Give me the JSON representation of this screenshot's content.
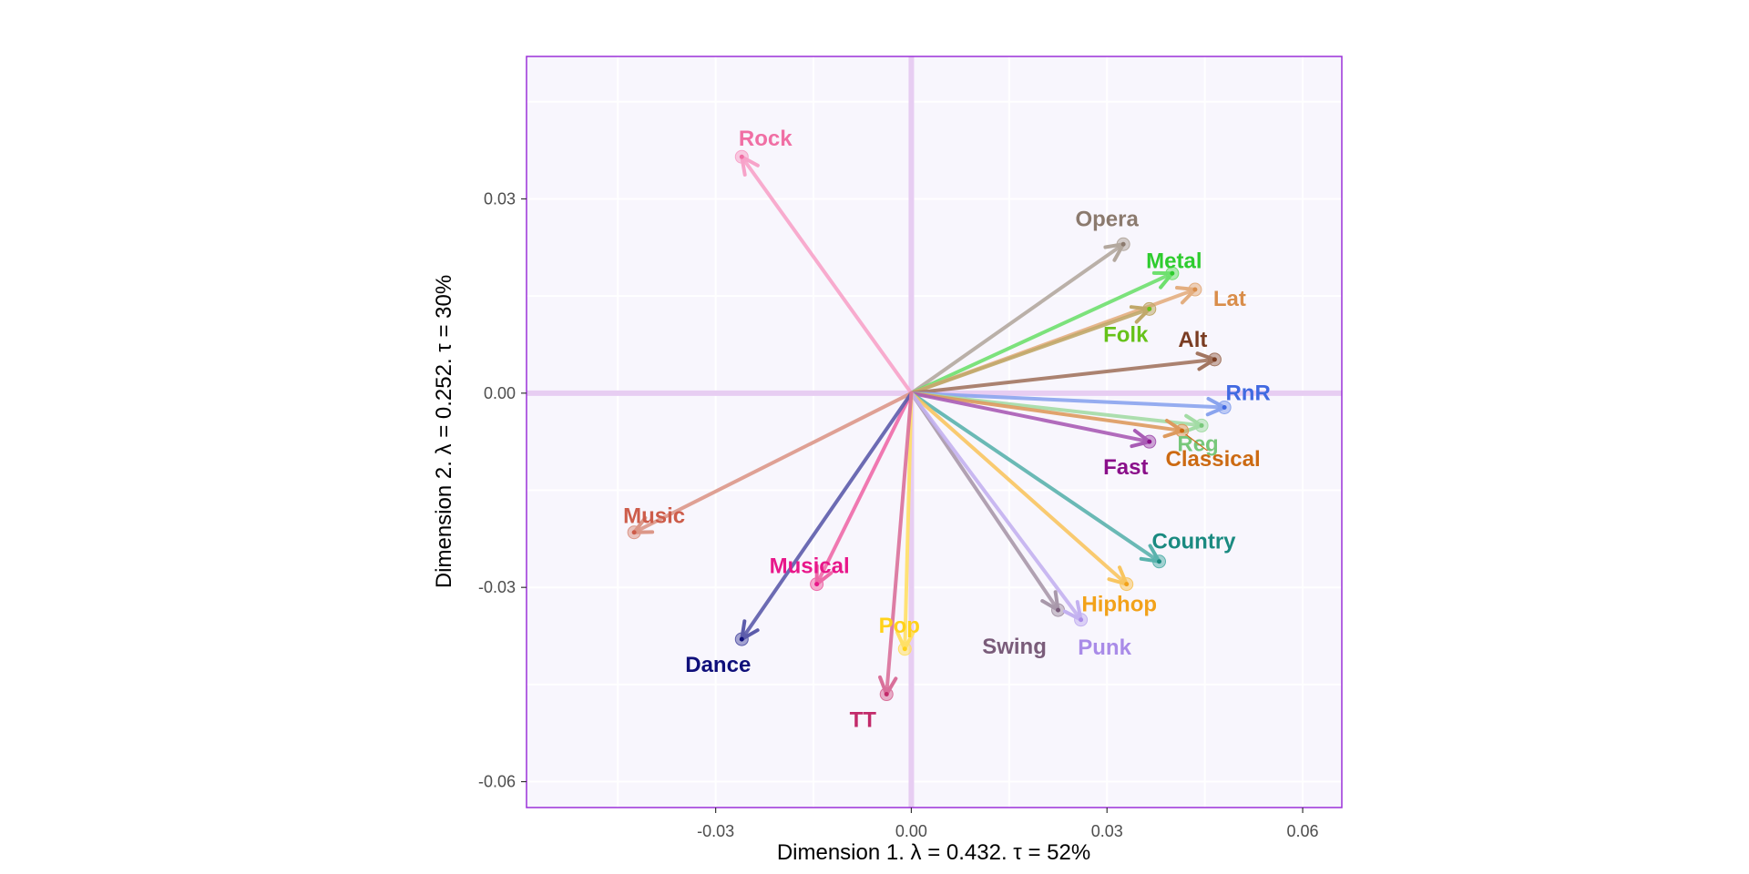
{
  "chart_data": {
    "type": "scatter",
    "subtype": "biplot-arrows",
    "title": "",
    "xlabel": "Dimension 1.   λ = 0.432.  τ = 52%",
    "ylabel": "Dimension 2.   λ = 0.252.  τ = 30%",
    "xlim": [
      -0.059,
      0.066
    ],
    "ylim": [
      -0.064,
      0.052
    ],
    "x_ticks": [
      -0.03,
      0.0,
      0.03,
      0.06
    ],
    "x_tick_labels": [
      "-0.03",
      "0.00",
      "0.03",
      "0.06"
    ],
    "y_ticks": [
      -0.06,
      -0.03,
      0.0,
      0.03
    ],
    "y_tick_labels": [
      "-0.06",
      "-0.03",
      "0.00",
      "0.03"
    ],
    "grid": true,
    "legend": "none",
    "panel_background": "#f8f6fd",
    "panel_border_color": "#9b30d9",
    "zero_line_color": "#e7cdf2",
    "points": [
      {
        "label": "Rock",
        "x": -0.026,
        "y": 0.0365,
        "color": "#f06fa4",
        "arrow_color": "#f7a3c9"
      },
      {
        "label": "Opera",
        "x": 0.0325,
        "y": 0.023,
        "color": "#8b7a6e",
        "arrow_color": "#b3a89e"
      },
      {
        "label": "Metal",
        "x": 0.04,
        "y": 0.0185,
        "color": "#2ecc2e",
        "arrow_color": "#6ee06e"
      },
      {
        "label": "Lat",
        "x": 0.0435,
        "y": 0.016,
        "color": "#d98d4a",
        "arrow_color": "#e3ae80"
      },
      {
        "label": "Folk",
        "x": 0.0365,
        "y": 0.013,
        "color": "#66c21a",
        "arrow_color": "#c0a86a"
      },
      {
        "label": "Alt",
        "x": 0.0465,
        "y": 0.0052,
        "color": "#7a3c22",
        "arrow_color": "#a27560"
      },
      {
        "label": "RnR",
        "x": 0.048,
        "y": -0.0022,
        "color": "#4169e1",
        "arrow_color": "#8aa4ee"
      },
      {
        "label": "Reg",
        "x": 0.0445,
        "y": -0.005,
        "color": "#77c77a",
        "arrow_color": "#a3dca5"
      },
      {
        "label": "Classical",
        "x": 0.0415,
        "y": -0.0058,
        "color": "#cc6a12",
        "arrow_color": "#dd9a5e"
      },
      {
        "label": "Fast",
        "x": 0.0365,
        "y": -0.0075,
        "color": "#8a0f8a",
        "arrow_color": "#a85cb5"
      },
      {
        "label": "Country",
        "x": 0.038,
        "y": -0.026,
        "color": "#1a8a80",
        "arrow_color": "#5ab3ad"
      },
      {
        "label": "Hiphop",
        "x": 0.033,
        "y": -0.0295,
        "color": "#f2a21a",
        "arrow_color": "#f8c560"
      },
      {
        "label": "Swing",
        "x": 0.0225,
        "y": -0.0335,
        "color": "#7a5c7a",
        "arrow_color": "#a898aa"
      },
      {
        "label": "Punk",
        "x": 0.026,
        "y": -0.035,
        "color": "#a98be8",
        "arrow_color": "#c3b1f0"
      },
      {
        "label": "Music",
        "x": -0.0425,
        "y": -0.0215,
        "color": "#cd5c4a",
        "arrow_color": "#dc9788"
      },
      {
        "label": "Musical",
        "x": -0.0145,
        "y": -0.0295,
        "color": "#e8178a",
        "arrow_color": "#ee6aa8"
      },
      {
        "label": "Dance",
        "x": -0.026,
        "y": -0.038,
        "color": "#0f0f7a",
        "arrow_color": "#5c5cab"
      },
      {
        "label": "Pop",
        "x": -0.001,
        "y": -0.0395,
        "color": "#ffd21a",
        "arrow_color": "#ffe066"
      },
      {
        "label": "TT",
        "x": -0.0038,
        "y": -0.0465,
        "color": "#c22a6a",
        "arrow_color": "#d9709a"
      }
    ]
  }
}
